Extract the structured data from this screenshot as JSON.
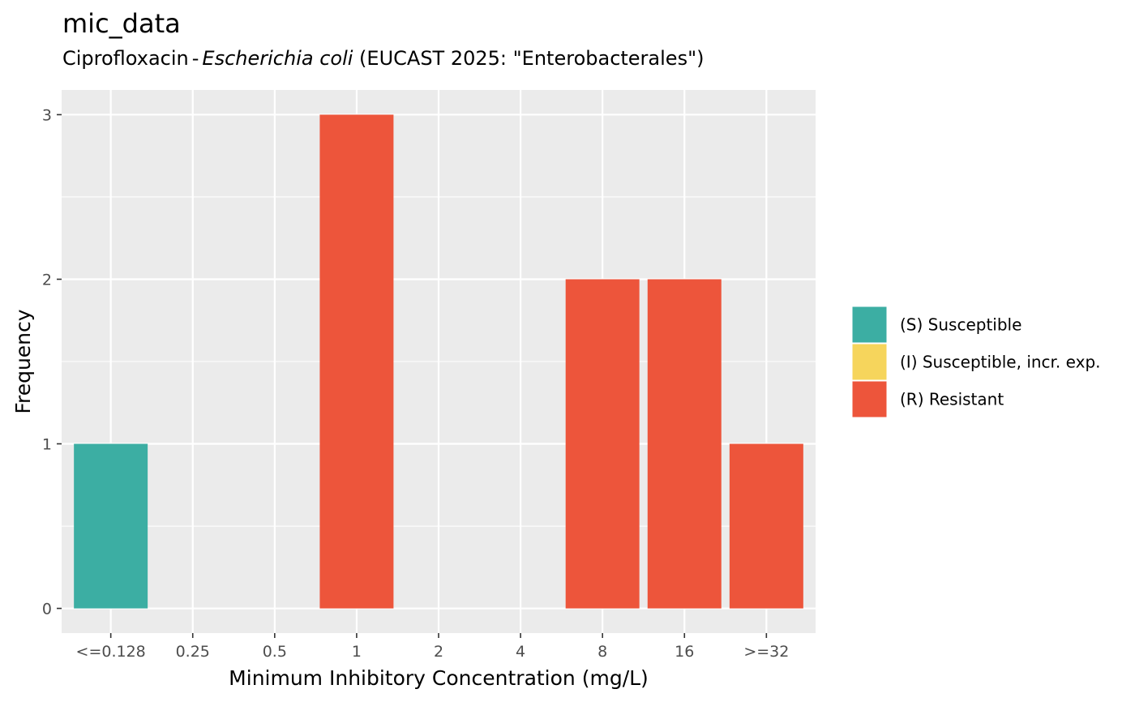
{
  "chart_data": {
    "type": "bar",
    "title": "mic_data",
    "subtitle": {
      "antibiotic": "Ciprofloxacin",
      "separator": "-",
      "organism": "Escherichia coli",
      "guideline": "(EUCAST 2025: \"Enterobacterales\")"
    },
    "xlabel": "Minimum Inhibitory Concentration (mg/L)",
    "ylabel": "Frequency",
    "categories": [
      "<=0.128",
      "0.25",
      "0.5",
      "1",
      "2",
      "4",
      "8",
      "16",
      ">=32"
    ],
    "values": [
      1,
      0,
      0,
      3,
      0,
      0,
      2,
      2,
      1
    ],
    "interpretation": [
      "S",
      null,
      null,
      "R",
      null,
      null,
      "R",
      "R",
      "R"
    ],
    "yticks": [
      0,
      1,
      2,
      3
    ],
    "ylim": [
      0,
      3
    ],
    "grid": true,
    "legend": {
      "placement": "right",
      "entries": [
        {
          "key": "S",
          "label": "(S) Susceptible",
          "color": "#3CAEA3"
        },
        {
          "key": "I",
          "label": "(I) Susceptible, incr. exp.",
          "color": "#F6D55C"
        },
        {
          "key": "R",
          "label": "(R) Resistant",
          "color": "#ED553B"
        }
      ]
    },
    "colors": {
      "panel_background": "#EBEBEB",
      "gridline": "#FFFFFF"
    }
  }
}
